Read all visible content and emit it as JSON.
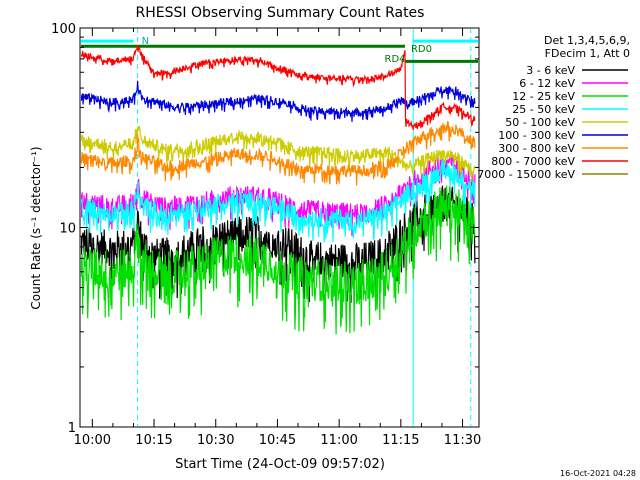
{
  "chart_data": {
    "type": "line",
    "title": "RHESSI Observing Summary Count Rates",
    "xlabel": "Start Time (24-Oct-09 09:57:02)",
    "ylabel": "Count Rate (s⁻¹ detector⁻¹)",
    "y_scale": "log",
    "ylim": [
      1,
      100
    ],
    "xlim": [
      "09:57",
      "11:34"
    ],
    "y_ticks": [
      {
        "value": 1,
        "label": "1"
      },
      {
        "value": 10,
        "label": "10"
      },
      {
        "value": 100,
        "label": "100"
      }
    ],
    "x_ticks": [
      {
        "time": "10:00",
        "label": "10:00"
      },
      {
        "time": "10:15",
        "label": "10:15"
      },
      {
        "time": "10:30",
        "label": "10:30"
      },
      {
        "time": "10:45",
        "label": "10:45"
      },
      {
        "time": "11:00",
        "label": "11:00"
      },
      {
        "time": "11:15",
        "label": "11:15"
      },
      {
        "time": "11:30",
        "label": "11:30"
      }
    ],
    "legend_header": [
      "Det 1,3,4,5,6,9,",
      "FDecim 1, Att 0"
    ],
    "legend_position": "right",
    "series": [
      {
        "name": "3 - 6 keV",
        "color": "#000000",
        "noise": 0.09,
        "points": [
          [
            "09:57",
            8.4
          ],
          [
            "10:05",
            7.8
          ],
          [
            "10:10",
            8.3
          ],
          [
            "10:11",
            11.0
          ],
          [
            "10:12",
            8.5
          ],
          [
            "10:15",
            7.2
          ],
          [
            "10:20",
            7.3
          ],
          [
            "10:27",
            8.4
          ],
          [
            "10:32",
            9.0
          ],
          [
            "10:40",
            9.6
          ],
          [
            "10:47",
            8.4
          ],
          [
            "10:53",
            7.0
          ],
          [
            "11:05",
            6.8
          ],
          [
            "11:10",
            7.3
          ],
          [
            "11:14",
            8.8
          ],
          [
            "11:17",
            10.5
          ],
          [
            "11:21",
            12.0
          ],
          [
            "11:25",
            13.2
          ],
          [
            "11:28",
            13.0
          ],
          [
            "11:31",
            11.6
          ],
          [
            "11:33",
            10.5
          ]
        ]
      },
      {
        "name": "6 - 12 keV",
        "color": "#ff00ff",
        "noise": 0.05,
        "points": [
          [
            "09:57",
            13.8
          ],
          [
            "10:05",
            12.7
          ],
          [
            "10:10",
            13.4
          ],
          [
            "10:11",
            17.0
          ],
          [
            "10:12",
            14.0
          ],
          [
            "10:18",
            12.6
          ],
          [
            "10:27",
            13.5
          ],
          [
            "10:35",
            14.6
          ],
          [
            "10:42",
            14.4
          ],
          [
            "10:50",
            12.3
          ],
          [
            "11:05",
            11.8
          ],
          [
            "11:12",
            13.2
          ],
          [
            "11:17",
            16.8
          ],
          [
            "11:21",
            19.0
          ],
          [
            "11:25",
            21.5
          ],
          [
            "11:28",
            21.0
          ],
          [
            "11:31",
            18.6
          ],
          [
            "11:33",
            17.0
          ]
        ]
      },
      {
        "name": "12 - 25 keV",
        "color": "#00dd00",
        "noise": 0.11,
        "points": [
          [
            "09:57",
            6.4
          ],
          [
            "10:05",
            6.0
          ],
          [
            "10:10",
            6.4
          ],
          [
            "10:11",
            9.0
          ],
          [
            "10:12",
            6.6
          ],
          [
            "10:18",
            5.8
          ],
          [
            "10:27",
            6.7
          ],
          [
            "10:34",
            7.4
          ],
          [
            "10:42",
            7.0
          ],
          [
            "10:50",
            5.6
          ],
          [
            "11:05",
            5.3
          ],
          [
            "11:12",
            6.2
          ],
          [
            "11:16",
            8.5
          ],
          [
            "11:20",
            11.0
          ],
          [
            "11:25",
            12.8
          ],
          [
            "11:28",
            12.6
          ],
          [
            "11:31",
            11.2
          ],
          [
            "11:33",
            10.2
          ]
        ]
      },
      {
        "name": "25 - 50 keV",
        "color": "#00ffff",
        "noise": 0.05,
        "points": [
          [
            "09:57",
            12.8
          ],
          [
            "10:05",
            11.8
          ],
          [
            "10:10",
            12.4
          ],
          [
            "10:11",
            16.0
          ],
          [
            "10:12",
            12.8
          ],
          [
            "10:18",
            11.6
          ],
          [
            "10:27",
            12.6
          ],
          [
            "10:33",
            13.8
          ],
          [
            "10:42",
            13.4
          ],
          [
            "10:50",
            11.4
          ],
          [
            "11:05",
            10.8
          ],
          [
            "11:12",
            12.0
          ],
          [
            "11:17",
            15.0
          ],
          [
            "11:21",
            17.2
          ],
          [
            "11:25",
            19.6
          ],
          [
            "11:28",
            19.2
          ],
          [
            "11:31",
            16.8
          ],
          [
            "11:33",
            15.4
          ]
        ]
      },
      {
        "name": "50 - 100 keV",
        "color": "#cccc00",
        "noise": 0.03,
        "points": [
          [
            "09:57",
            27.5
          ],
          [
            "10:05",
            25.5
          ],
          [
            "10:10",
            26.5
          ],
          [
            "10:11",
            33.0
          ],
          [
            "10:12",
            27.5
          ],
          [
            "10:18",
            24.5
          ],
          [
            "10:27",
            26.0
          ],
          [
            "10:35",
            29.0
          ],
          [
            "10:43",
            28.0
          ],
          [
            "10:50",
            24.2
          ],
          [
            "11:05",
            23.0
          ],
          [
            "11:12",
            24.0
          ],
          [
            "11:17",
            20.0
          ],
          [
            "11:21",
            22.0
          ],
          [
            "11:25",
            23.5
          ],
          [
            "11:28",
            23.0
          ],
          [
            "11:31",
            20.5
          ],
          [
            "11:33",
            19.0
          ]
        ]
      },
      {
        "name": "100 - 300 keV",
        "color": "#0000dd",
        "noise": 0.02,
        "points": [
          [
            "09:57",
            45.5
          ],
          [
            "10:05",
            42.5
          ],
          [
            "10:10",
            44.0
          ],
          [
            "10:11",
            52.0
          ],
          [
            "10:12",
            45.0
          ],
          [
            "10:20",
            40.0
          ],
          [
            "10:30",
            42.0
          ],
          [
            "10:40",
            44.5
          ],
          [
            "10:47",
            42.5
          ],
          [
            "10:53",
            38.5
          ],
          [
            "11:05",
            37.8
          ],
          [
            "11:12",
            40.0
          ],
          [
            "11:15",
            44.0
          ],
          [
            "11:17",
            42.0
          ],
          [
            "11:22",
            46.0
          ],
          [
            "11:25",
            49.5
          ],
          [
            "11:28",
            49.0
          ],
          [
            "11:31",
            45.5
          ],
          [
            "11:33",
            43.0
          ]
        ]
      },
      {
        "name": "300 - 800 keV",
        "color": "#ff8800",
        "noise": 0.03,
        "points": [
          [
            "09:57",
            22.5
          ],
          [
            "10:05",
            21.0
          ],
          [
            "10:10",
            21.8
          ],
          [
            "10:11",
            27.5
          ],
          [
            "10:12",
            22.6
          ],
          [
            "10:18",
            20.0
          ],
          [
            "10:27",
            21.5
          ],
          [
            "10:35",
            23.5
          ],
          [
            "10:43",
            22.8
          ],
          [
            "10:50",
            19.8
          ],
          [
            "11:05",
            19.2
          ],
          [
            "11:12",
            20.5
          ],
          [
            "11:17",
            26.0
          ],
          [
            "11:21",
            29.0
          ],
          [
            "11:25",
            32.0
          ],
          [
            "11:28",
            31.5
          ],
          [
            "11:31",
            28.5
          ],
          [
            "11:33",
            26.5
          ]
        ]
      },
      {
        "name": "800 - 7000 keV",
        "color": "#ff0000",
        "noise": 0.015,
        "points": [
          [
            "09:57",
            74.5
          ],
          [
            "10:05",
            68.0
          ],
          [
            "10:10",
            71.0
          ],
          [
            "10:11",
            83.0
          ],
          [
            "10:12",
            73.0
          ],
          [
            "10:15",
            60.0
          ],
          [
            "10:18",
            59.0
          ],
          [
            "10:22",
            63.0
          ],
          [
            "10:27",
            67.0
          ],
          [
            "10:35",
            70.0
          ],
          [
            "10:41",
            69.0
          ],
          [
            "10:45",
            64.0
          ],
          [
            "10:50",
            58.5
          ],
          [
            "11:00",
            55.8
          ],
          [
            "11:08",
            56.0
          ],
          [
            "11:12",
            58.5
          ],
          [
            "11:15",
            62.0
          ],
          [
            "11:16",
            77.0
          ],
          [
            "11:16",
            35.0
          ],
          [
            "11:18",
            32.0
          ],
          [
            "11:22",
            36.0
          ],
          [
            "11:25",
            40.5
          ],
          [
            "11:28",
            40.0
          ],
          [
            "11:31",
            37.0
          ],
          [
            "11:33",
            34.5
          ]
        ]
      },
      {
        "name": "7000 - 15000 keV",
        "color": "#888800",
        "noise": 0,
        "points": []
      }
    ],
    "annotations": [
      {
        "text": "N",
        "time": "10:11",
        "color": "#00aaaa"
      },
      {
        "text": "RD0",
        "time": "11:16",
        "color": "#007700"
      },
      {
        "text": "RD4",
        "time": "11:12",
        "color": "#007700"
      }
    ],
    "status_bars": [
      {
        "color": "#00ffff",
        "value": 86,
        "segments": [
          [
            "09:57",
            "10:10"
          ],
          [
            "11:18",
            "11:34"
          ]
        ]
      },
      {
        "color": "#007700",
        "value": 81,
        "segments": [
          [
            "09:57",
            "11:16"
          ]
        ]
      },
      {
        "color": "#007700",
        "value": 68,
        "segments": [
          [
            "11:16",
            "11:34"
          ]
        ]
      }
    ],
    "vertical_markers": [
      {
        "time": "09:57",
        "style": "solid",
        "color": "#00ffff"
      },
      {
        "time": "10:11",
        "style": "dashed",
        "color": "#00ffff"
      },
      {
        "time": "11:18",
        "style": "solid",
        "color": "#00ffff"
      },
      {
        "time": "11:32",
        "style": "dashed",
        "color": "#00ffff"
      }
    ]
  },
  "footer": {
    "timestamp": "16-Oct-2021 04:28"
  }
}
